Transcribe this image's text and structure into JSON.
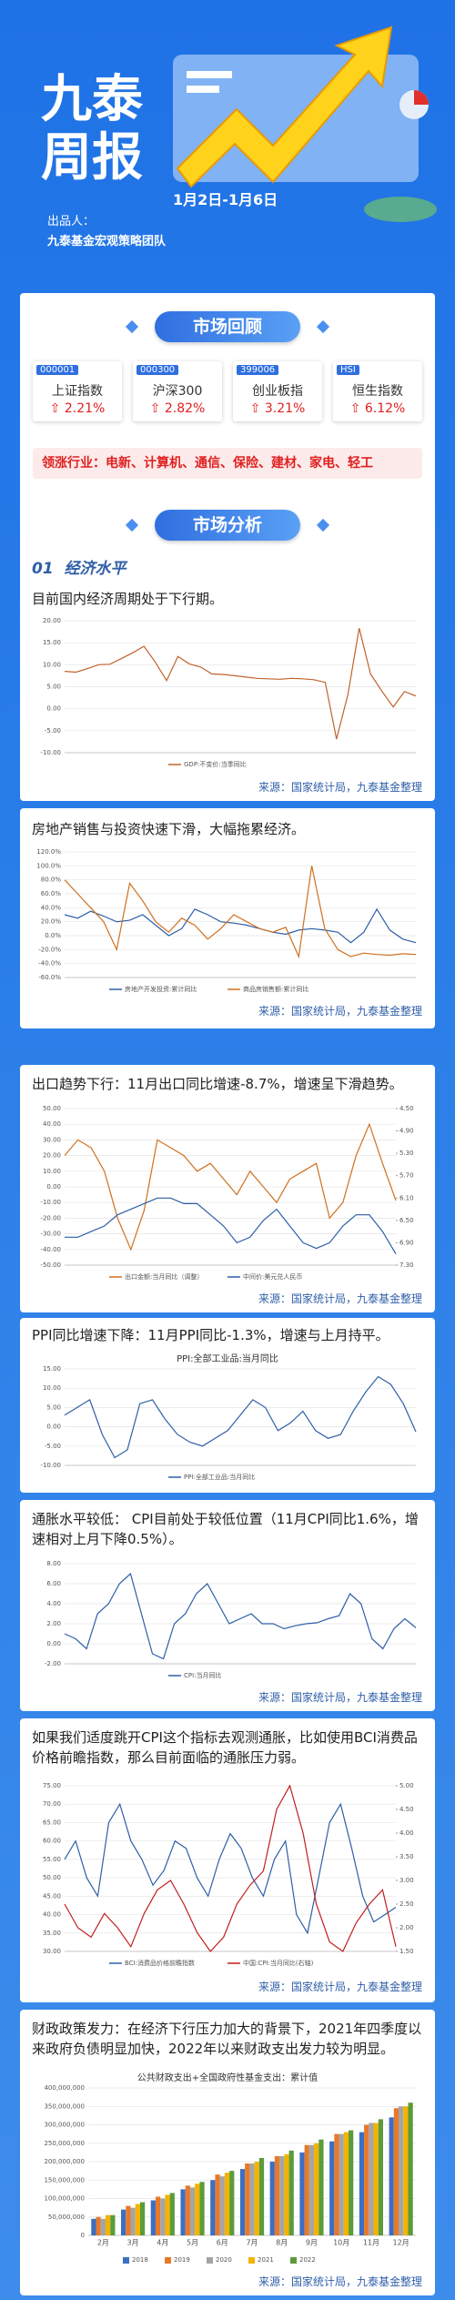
{
  "header": {
    "title": "九泰周报",
    "date": "1月2日-1月6日",
    "producer_label": "出品人：",
    "producer": "九泰基金宏观策略团队"
  },
  "market_review": {
    "heading": "市场回顾",
    "indices": [
      {
        "code": "000001",
        "name": "上证指数",
        "change": "2.21%"
      },
      {
        "code": "000300",
        "name": "沪深300",
        "change": "2.82%"
      },
      {
        "code": "399006",
        "name": "创业板指",
        "change": "3.21%"
      },
      {
        "code": "HSI",
        "name": "恒生指数",
        "change": "6.12%"
      }
    ],
    "leading_label": "领涨行业：",
    "leading": "电新、计算机、通信、保险、建材、家电、轻工"
  },
  "market_analysis": {
    "heading": "市场分析",
    "section_no": "01",
    "section_title": "经济水平",
    "blocks": [
      {
        "text": "目前国内经济周期处于下行期。",
        "source": "来源：国家统计局，九泰基金整理",
        "chart_data": {
          "type": "line",
          "grid": true,
          "ylim": [
            -10,
            20
          ],
          "yticks": [
            {
              "value": 20,
              "label": "20.00"
            },
            {
              "value": 15,
              "label": "15.00"
            },
            {
              "value": 10,
              "label": "10.00"
            },
            {
              "value": 5,
              "label": "5.00"
            },
            {
              "value": 0,
              "label": "0.00"
            },
            {
              "value": -5,
              "label": "-5.00"
            },
            {
              "value": -10,
              "label": "-10.00"
            }
          ],
          "series": [
            {
              "name": "GDP:不变价:当季同比",
              "color": "#c0622b",
              "values": [
                8.5,
                8.3,
                9.1,
                10,
                10.1,
                11.4,
                12.7,
                14.2,
                10.6,
                6.4,
                11.9,
                10.2,
                9.5,
                7.9,
                7.8,
                7.5,
                7.2,
                6.9,
                6.8,
                6.7,
                6.9,
                6.8,
                6.6,
                6.0,
                -6.9,
                3.2,
                18.3,
                7.9,
                4.0,
                0.4,
                3.9,
                2.9
              ]
            }
          ]
        }
      },
      {
        "text": "房地产销售与投资快速下滑，大幅拖累经济。",
        "source": "来源：国家统计局，九泰基金整理",
        "chart_data": {
          "type": "line",
          "grid": true,
          "ylim": [
            -60,
            120
          ],
          "yticks": [
            {
              "value": 120,
              "label": "120.0%"
            },
            {
              "value": 100,
              "label": "100.0%"
            },
            {
              "value": 80,
              "label": "80.0%"
            },
            {
              "value": 60,
              "label": "60.0%"
            },
            {
              "value": 40,
              "label": "40.0%"
            },
            {
              "value": 20,
              "label": "20.0%"
            },
            {
              "value": 0,
              "label": "0.0%"
            },
            {
              "value": -20,
              "label": "-20.0%"
            },
            {
              "value": -40,
              "label": "-40.0%"
            },
            {
              "value": -60,
              "label": "-60.0%"
            }
          ],
          "series": [
            {
              "name": "房地产开发投资:累计同比",
              "color": "#2f5fa8",
              "values": [
                30,
                25,
                35,
                28,
                20,
                22,
                30,
                15,
                0,
                10,
                38,
                30,
                20,
                18,
                15,
                10,
                5,
                2,
                8,
                10,
                8,
                5,
                -10,
                5,
                38,
                8,
                -5,
                -10
              ]
            },
            {
              "name": "商品房销售额:累计同比",
              "color": "#d0701f",
              "values": [
                80,
                60,
                40,
                20,
                -20,
                75,
                50,
                20,
                5,
                25,
                15,
                -5,
                10,
                30,
                20,
                10,
                5,
                12,
                -30,
                100,
                10,
                -20,
                -30,
                -25,
                -27,
                -28,
                -26,
                -27
              ]
            }
          ]
        }
      },
      {
        "text": "出口趋势下行：11月出口同比增速-8.7%，增速呈下滑趋势。",
        "source": "来源：国家统计局，九泰基金整理",
        "chart_data": {
          "type": "line",
          "grid": true,
          "ylim": [
            -50,
            50
          ],
          "yticks": [
            {
              "value": 50,
              "label": "50.00"
            },
            {
              "value": 40,
              "label": "40.00"
            },
            {
              "value": 30,
              "label": "30.00"
            },
            {
              "value": 20,
              "label": "20.00"
            },
            {
              "value": 10,
              "label": "10.00"
            },
            {
              "value": 0,
              "label": "0.00"
            },
            {
              "value": -10,
              "label": "-10.00"
            },
            {
              "value": -20,
              "label": "-20.00"
            },
            {
              "value": -30,
              "label": "-30.00"
            },
            {
              "value": -40,
              "label": "-40.00"
            },
            {
              "value": -50,
              "label": "-50.00"
            }
          ],
          "y2lim": [
            7.3,
            4.5
          ],
          "y2ticks": [
            {
              "value": 4.5,
              "label": "4.50"
            },
            {
              "value": 4.9,
              "label": "4.90"
            },
            {
              "value": 5.3,
              "label": "5.30"
            },
            {
              "value": 5.7,
              "label": "5.70"
            },
            {
              "value": 6.1,
              "label": "6.10"
            },
            {
              "value": 6.5,
              "label": "6.50"
            },
            {
              "value": 6.9,
              "label": "6.90"
            },
            {
              "value": 7.3,
              "label": "7.30"
            }
          ],
          "series": [
            {
              "name": "出口金额:当月同比（调整）",
              "color": "#d0701f",
              "values": [
                20,
                30,
                25,
                10,
                -20,
                -40,
                -15,
                30,
                25,
                20,
                10,
                15,
                5,
                -5,
                10,
                0,
                -10,
                5,
                10,
                15,
                -20,
                -10,
                20,
                40,
                15,
                -8.7
              ]
            },
            {
              "name": "中间价:美元兑人民币",
              "color": "#2f5fa8",
              "axis": "y2",
              "values": [
                6.8,
                6.8,
                6.7,
                6.6,
                6.4,
                6.3,
                6.2,
                6.1,
                6.1,
                6.2,
                6.2,
                6.4,
                6.6,
                6.9,
                6.8,
                6.5,
                6.3,
                6.6,
                6.9,
                7.0,
                6.9,
                6.6,
                6.4,
                6.4,
                6.7,
                7.1
              ]
            }
          ]
        }
      },
      {
        "text": "PPI同比增速下降：11月PPI同比-1.3%，增速与上月持平。",
        "chart_data": {
          "type": "line",
          "grid": true,
          "title": "PPI:全部工业品:当月同比",
          "ylim": [
            -10,
            15
          ],
          "yticks": [
            {
              "value": 15,
              "label": "15.00"
            },
            {
              "value": 10,
              "label": "10.00"
            },
            {
              "value": 5,
              "label": "5.00"
            },
            {
              "value": 0,
              "label": "0.00"
            },
            {
              "value": -5,
              "label": "-5.00"
            },
            {
              "value": -10,
              "label": "-10.00"
            }
          ],
          "series": [
            {
              "name": "PPI:全部工业品:当月同比",
              "color": "#2f5fa8",
              "values": [
                3,
                5,
                7,
                -2,
                -8,
                -6,
                6,
                7,
                2,
                -2,
                -4,
                -5,
                -3,
                -1,
                3,
                7,
                5,
                -1,
                1,
                4,
                -1,
                -3,
                -2,
                4,
                9,
                13,
                11,
                6,
                -1.3
              ]
            }
          ]
        }
      },
      {
        "text": "通胀水平较低： CPI目前处于较低位置（11月CPI同比1.6%，增速相对上月下降0.5%）。",
        "source": "来源：国家统计局，九泰基金整理",
        "chart_data": {
          "type": "line",
          "grid": true,
          "ylim": [
            -2,
            8
          ],
          "yticks": [
            {
              "value": 8,
              "label": "8.00"
            },
            {
              "value": 6,
              "label": "6.00"
            },
            {
              "value": 4,
              "label": "4.00"
            },
            {
              "value": 2,
              "label": "2.00"
            },
            {
              "value": 0,
              "label": "0.00"
            },
            {
              "value": -2,
              "label": "-2.00"
            }
          ],
          "series": [
            {
              "name": "CPI:当月同比",
              "color": "#2f5fa8",
              "values": [
                1,
                0.5,
                -0.5,
                3,
                4,
                6,
                7,
                3,
                -1,
                -1.5,
                2,
                3,
                5,
                6,
                4,
                2,
                2.5,
                3,
                2,
                2,
                1.5,
                1.8,
                2,
                2.1,
                2.5,
                2.8,
                5,
                4,
                0.5,
                -0.5,
                1.5,
                2.5,
                1.6
              ]
            }
          ]
        }
      },
      {
        "text": "如果我们适度跳开CPI这个指标去观测通胀，比如使用BCI消费品价格前瞻指数，那么目前面临的通胀压力弱。",
        "source": "来源：国家统计局，九泰基金整理",
        "chart_data": {
          "type": "line",
          "grid": true,
          "ylim": [
            30,
            75
          ],
          "yticks": [
            {
              "value": 75,
              "label": "75.00"
            },
            {
              "value": 70,
              "label": "70.00"
            },
            {
              "value": 65,
              "label": "65.00"
            },
            {
              "value": 60,
              "label": "60.00"
            },
            {
              "value": 55,
              "label": "55.00"
            },
            {
              "value": 50,
              "label": "50.00"
            },
            {
              "value": 45,
              "label": "45.00"
            },
            {
              "value": 40,
              "label": "40.00"
            },
            {
              "value": 35,
              "label": "35.00"
            },
            {
              "value": 30,
              "label": "30.00"
            }
          ],
          "y2lim": [
            1.5,
            5
          ],
          "y2ticks": [
            {
              "value": 5,
              "label": "5.00"
            },
            {
              "value": 4.5,
              "label": "4.50"
            },
            {
              "value": 4,
              "label": "4.00"
            },
            {
              "value": 3.5,
              "label": "3.50"
            },
            {
              "value": 3,
              "label": "3.00"
            },
            {
              "value": 2.5,
              "label": "2.50"
            },
            {
              "value": 2,
              "label": "2.00"
            },
            {
              "value": 1.5,
              "label": "1.50"
            }
          ],
          "series": [
            {
              "name": "BCI:消费品价格前瞻指数",
              "color": "#2f5fa8",
              "values": [
                55,
                60,
                50,
                45,
                65,
                70,
                60,
                55,
                48,
                52,
                60,
                58,
                50,
                45,
                55,
                62,
                58,
                50,
                45,
                55,
                60,
                40,
                35,
                50,
                65,
                70,
                58,
                45,
                38,
                40,
                42
              ]
            },
            {
              "name": "中国:CPI:当月同比(右轴)",
              "color": "#c0201f",
              "axis": "y2",
              "values": [
                2.5,
                2.0,
                1.8,
                2.3,
                2.0,
                1.6,
                2.3,
                2.8,
                3.0,
                2.5,
                1.9,
                1.5,
                1.8,
                2.5,
                2.9,
                3.2,
                4.5,
                5.0,
                4.0,
                2.5,
                1.7,
                1.5,
                2.1,
                2.5,
                2.8,
                1.6
              ]
            }
          ]
        }
      },
      {
        "text": "财政政策发力：在经济下行压力加大的背景下，2021年四季度以来政府负债明显加快，2022年以来财政支出发力较为明显。",
        "source": "来源：国家统计局，九泰基金整理",
        "chart_data": {
          "type": "bar",
          "grid": true,
          "title": "公共财政支出+全国政府性基金支出：累计值",
          "ylim": [
            0,
            400000000
          ],
          "yticks": [
            0,
            {
              "value": 50000000,
              "label": "50,000,000"
            },
            {
              "value": 100000000,
              "label": "100,000,000"
            },
            {
              "value": 150000000,
              "label": "150,000,000"
            },
            {
              "value": 200000000,
              "label": "200,000,000"
            },
            {
              "value": 250000000,
              "label": "250,000,000"
            },
            {
              "value": 300000000,
              "label": "300,000,000"
            },
            {
              "value": 350000000,
              "label": "350,000,000"
            },
            {
              "value": 400000000,
              "label": "400,000,000"
            }
          ],
          "categories": [
            "2月",
            "3月",
            "4月",
            "5月",
            "6月",
            "7月",
            "8月",
            "9月",
            "10月",
            "11月",
            "12月"
          ],
          "series": [
            {
              "name": "2018",
              "color": "#3b6fc4",
              "values": [
                45000000,
                70000000,
                95000000,
                125000000,
                150000000,
                180000000,
                200000000,
                225000000,
                255000000,
                280000000,
                320000000
              ]
            },
            {
              "name": "2019",
              "color": "#e8792b",
              "values": [
                50000000,
                80000000,
                105000000,
                135000000,
                165000000,
                195000000,
                215000000,
                245000000,
                275000000,
                300000000,
                345000000
              ]
            },
            {
              "name": "2020",
              "color": "#a5a5a5",
              "values": [
                45000000,
                75000000,
                100000000,
                130000000,
                160000000,
                195000000,
                215000000,
                245000000,
                275000000,
                305000000,
                350000000
              ]
            },
            {
              "name": "2021",
              "color": "#f2b400",
              "values": [
                55000000,
                85000000,
                110000000,
                140000000,
                170000000,
                200000000,
                220000000,
                250000000,
                280000000,
                305000000,
                350000000
              ]
            },
            {
              "name": "2022",
              "color": "#5b9b3a",
              "values": [
                55000000,
                90000000,
                115000000,
                145000000,
                175000000,
                210000000,
                230000000,
                260000000,
                285000000,
                315000000,
                360000000
              ]
            }
          ]
        }
      }
    ]
  }
}
